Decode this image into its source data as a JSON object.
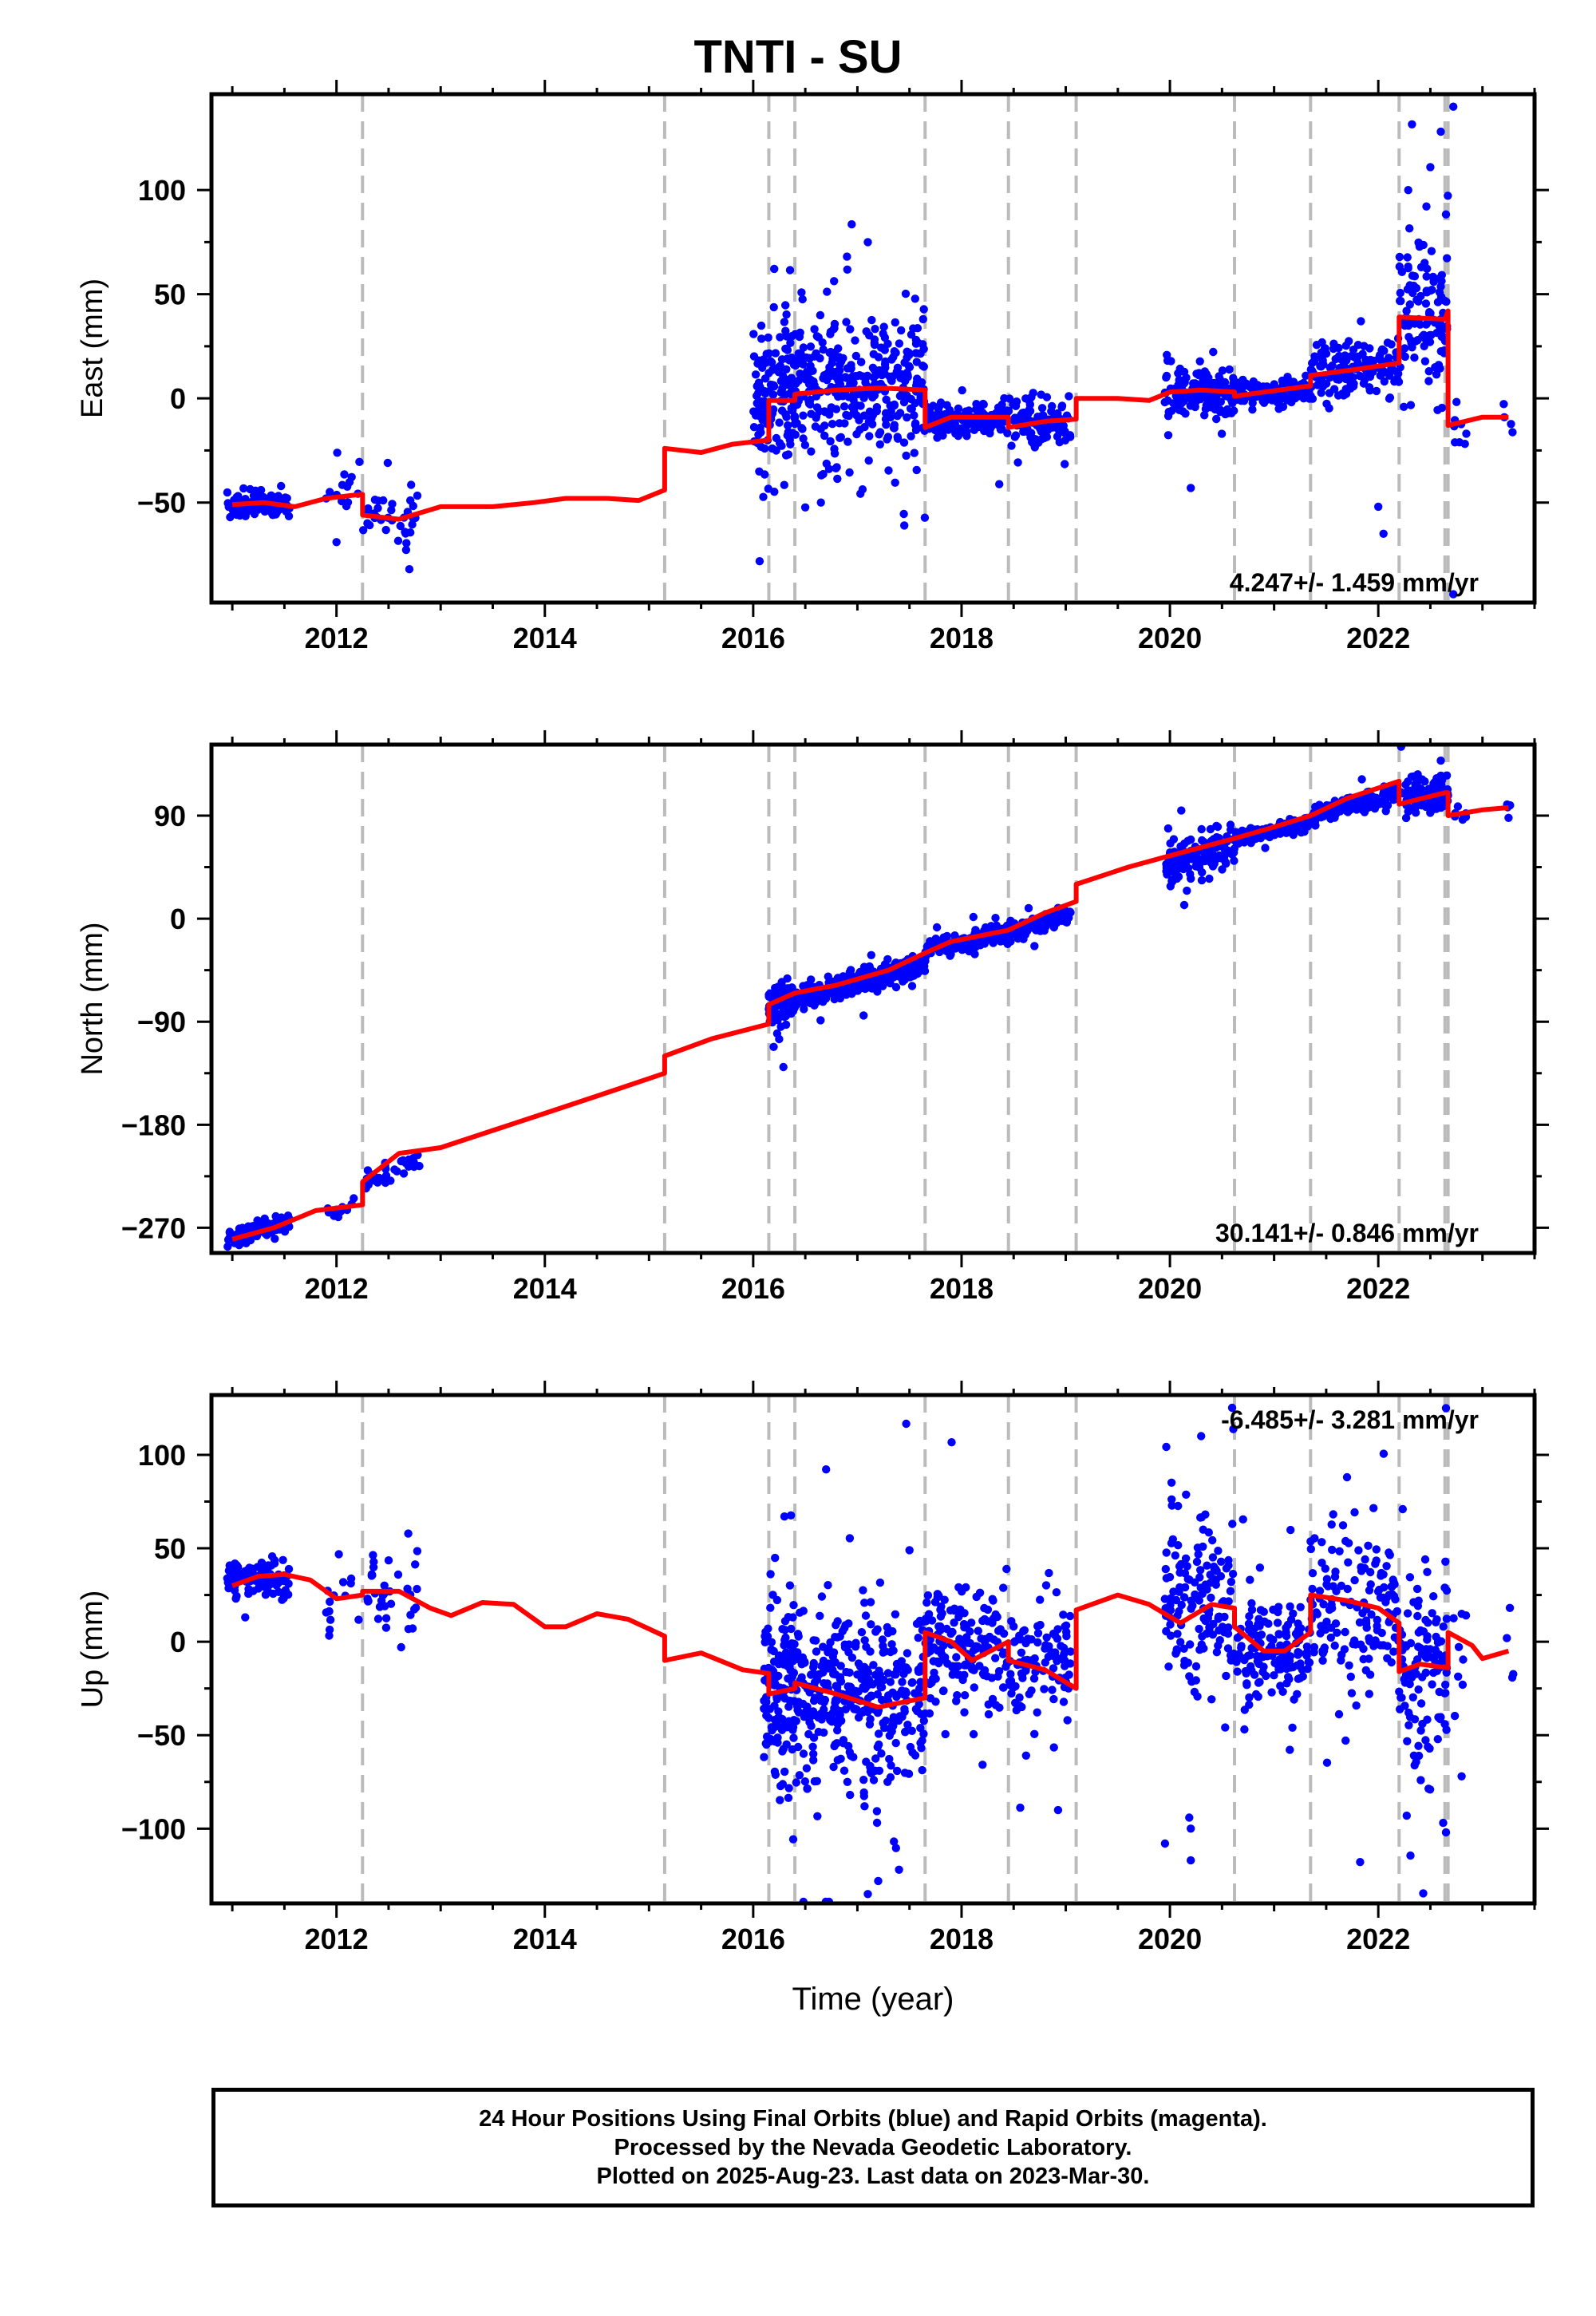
{
  "title": "TNTI - SU",
  "xlabel": "Time (year)",
  "footer": {
    "line1": "24 Hour Positions Using Final Orbits (blue) and Rapid Orbits (magenta).",
    "line2": "Processed by the Nevada Geodetic Laboratory.",
    "line3": "Plotted on 2025-Aug-23. Last data on 2023-Mar-30."
  },
  "colors": {
    "data": "#0000ff",
    "model": "#ff0000",
    "breaks": "#bbbbbb",
    "axis": "#000000"
  },
  "chart_data": [
    {
      "type": "scatter",
      "ylabel": "East (mm)",
      "xlim": [
        2010.8,
        2023.5
      ],
      "ylim": [
        -98,
        146
      ],
      "xticks": [
        2012,
        2014,
        2016,
        2018,
        2020,
        2022
      ],
      "yticks": [
        -50,
        0,
        50,
        100
      ],
      "rate": "4.247+/- 1.459 mm/yr",
      "rate_pos": "bottom",
      "breaks": [
        2012.25,
        2015.15,
        2016.15,
        2016.4,
        2017.65,
        2018.45,
        2019.1,
        2020.62,
        2021.35,
        2022.2,
        2022.64,
        2022.67
      ],
      "model": [
        [
          2011.0,
          -51
        ],
        [
          2011.3,
          -50
        ],
        [
          2011.6,
          -52
        ],
        [
          2011.9,
          -48
        ],
        [
          2012.25,
          -46
        ],
        [
          2012.25,
          -56
        ],
        [
          2012.6,
          -58
        ],
        [
          2013.0,
          -52
        ],
        [
          2013.5,
          -52
        ],
        [
          2013.9,
          -50
        ],
        [
          2014.2,
          -48
        ],
        [
          2014.6,
          -48
        ],
        [
          2014.9,
          -49
        ],
        [
          2015.15,
          -44
        ],
        [
          2015.15,
          -24
        ],
        [
          2015.5,
          -26
        ],
        [
          2015.8,
          -22
        ],
        [
          2016.15,
          -20
        ],
        [
          2016.15,
          -1
        ],
        [
          2016.4,
          -1
        ],
        [
          2016.4,
          2
        ],
        [
          2016.8,
          4
        ],
        [
          2017.2,
          5
        ],
        [
          2017.65,
          4
        ],
        [
          2017.65,
          -14
        ],
        [
          2017.9,
          -9
        ],
        [
          2018.45,
          -9
        ],
        [
          2018.45,
          -14
        ],
        [
          2018.8,
          -11
        ],
        [
          2019.1,
          -10
        ],
        [
          2019.1,
          0
        ],
        [
          2019.5,
          0
        ],
        [
          2019.8,
          -1
        ],
        [
          2020.0,
          3
        ],
        [
          2020.3,
          4
        ],
        [
          2020.62,
          3
        ],
        [
          2020.62,
          1
        ],
        [
          2020.9,
          3
        ],
        [
          2021.35,
          6
        ],
        [
          2021.35,
          11
        ],
        [
          2021.8,
          14
        ],
        [
          2022.2,
          17
        ],
        [
          2022.2,
          39
        ],
        [
          2022.64,
          38
        ],
        [
          2022.67,
          42
        ],
        [
          2022.67,
          -13
        ],
        [
          2023.0,
          -9
        ],
        [
          2023.25,
          -9
        ]
      ],
      "clusters": [
        {
          "x": [
            2010.95,
            2011.55
          ],
          "y": -51,
          "spread": 3,
          "n": 110,
          "tail": 0
        },
        {
          "x": [
            2011.9,
            2012.25
          ],
          "y": -44,
          "spread": 5,
          "n": 14,
          "tail": 0.1
        },
        {
          "x": [
            2012.25,
            2012.8
          ],
          "y": -56,
          "spread": 6,
          "n": 35,
          "tail": 0.1
        },
        {
          "x": [
            2016.0,
            2016.4
          ],
          "y": 0,
          "spread": 18,
          "n": 140,
          "tail": 0.1
        },
        {
          "x": [
            2016.4,
            2017.65
          ],
          "y": 5,
          "spread": 17,
          "n": 360,
          "tail": 0.06
        },
        {
          "x": [
            2017.65,
            2018.45
          ],
          "y": -10,
          "spread": 4,
          "n": 170,
          "tail": 0.03
        },
        {
          "x": [
            2018.45,
            2019.05
          ],
          "y": -12,
          "spread": 5,
          "n": 110,
          "tail": 0.04
        },
        {
          "x": [
            2019.95,
            2020.62
          ],
          "y": 3,
          "spread": 6,
          "n": 150,
          "tail": 0.12
        },
        {
          "x": [
            2020.62,
            2021.35
          ],
          "y": 3,
          "spread": 3,
          "n": 140,
          "tail": 0.02
        },
        {
          "x": [
            2021.35,
            2022.2
          ],
          "y": 15,
          "spread": 7,
          "n": 150,
          "tail": 0.05
        },
        {
          "x": [
            2022.2,
            2022.67
          ],
          "y": 42,
          "spread": 14,
          "n": 120,
          "tail": 0.15
        },
        {
          "x": [
            2022.72,
            2022.85
          ],
          "y": -12,
          "spread": 6,
          "n": 8,
          "tail": 0
        },
        {
          "x": [
            2023.2,
            2023.3
          ],
          "y": -12,
          "spread": 5,
          "n": 4,
          "tail": 0
        }
      ],
      "outliers": [
        [
          2012.0,
          -69
        ],
        [
          2012.7,
          -82
        ],
        [
          2017.1,
          75
        ],
        [
          2016.9,
          68
        ],
        [
          2016.65,
          -50
        ],
        [
          2017.45,
          -61
        ],
        [
          2020.2,
          -43
        ],
        [
          2022.0,
          -52
        ],
        [
          2022.05,
          -65
        ],
        [
          2022.5,
          111
        ],
        [
          2022.6,
          128
        ],
        [
          2022.72,
          140
        ],
        [
          2022.72,
          -94
        ]
      ]
    },
    {
      "type": "scatter",
      "ylabel": "North (mm)",
      "xlim": [
        2010.8,
        2023.5
      ],
      "ylim": [
        -292,
        152
      ],
      "xticks": [
        2012,
        2014,
        2016,
        2018,
        2020,
        2022
      ],
      "yticks": [
        -270,
        -180,
        -90,
        0,
        90
      ],
      "rate": "30.141+/- 0.846 mm/yr",
      "rate_pos": "bottom",
      "breaks": [
        2012.25,
        2015.15,
        2016.15,
        2016.4,
        2017.65,
        2018.45,
        2019.1,
        2020.62,
        2021.35,
        2022.2,
        2022.64,
        2022.67
      ],
      "model": [
        [
          2011.0,
          -280
        ],
        [
          2011.4,
          -270
        ],
        [
          2011.8,
          -255
        ],
        [
          2012.25,
          -250
        ],
        [
          2012.25,
          -230
        ],
        [
          2012.6,
          -205
        ],
        [
          2013.0,
          -200
        ],
        [
          2013.5,
          -185
        ],
        [
          2014.0,
          -170
        ],
        [
          2014.5,
          -155
        ],
        [
          2015.15,
          -135
        ],
        [
          2015.15,
          -120
        ],
        [
          2015.6,
          -105
        ],
        [
          2016.15,
          -92
        ],
        [
          2016.15,
          -75
        ],
        [
          2016.4,
          -65
        ],
        [
          2016.8,
          -58
        ],
        [
          2017.3,
          -45
        ],
        [
          2017.65,
          -30
        ],
        [
          2017.9,
          -20
        ],
        [
          2018.45,
          -10
        ],
        [
          2018.8,
          5
        ],
        [
          2019.1,
          15
        ],
        [
          2019.1,
          30
        ],
        [
          2019.6,
          45
        ],
        [
          2020.0,
          55
        ],
        [
          2020.62,
          70
        ],
        [
          2021.0,
          80
        ],
        [
          2021.35,
          90
        ],
        [
          2021.7,
          105
        ],
        [
          2022.2,
          120
        ],
        [
          2022.2,
          100
        ],
        [
          2022.64,
          110
        ],
        [
          2022.67,
          110
        ],
        [
          2022.67,
          90
        ],
        [
          2023.0,
          95
        ],
        [
          2023.25,
          97
        ]
      ],
      "clusters": [
        {
          "x": [
            2010.95,
            2011.55
          ],
          "y": -272,
          "slope": 30,
          "spread": 4,
          "n": 110,
          "tail": 0
        },
        {
          "x": [
            2011.9,
            2012.25
          ],
          "y": -254,
          "slope": 30,
          "spread": 3,
          "n": 14,
          "tail": 0
        },
        {
          "x": [
            2012.25,
            2012.8
          ],
          "y": -220,
          "slope": 40,
          "spread": 5,
          "n": 35,
          "tail": 0
        },
        {
          "x": [
            2016.15,
            2016.4
          ],
          "y": -75,
          "slope": 40,
          "spread": 8,
          "n": 110,
          "tail": 0.05
        },
        {
          "x": [
            2016.4,
            2017.65
          ],
          "y": -55,
          "slope": 25,
          "spread": 5,
          "n": 360,
          "tail": 0.02
        },
        {
          "x": [
            2017.65,
            2018.45
          ],
          "y": -20,
          "slope": 18,
          "spread": 4,
          "n": 170,
          "tail": 0.02
        },
        {
          "x": [
            2018.45,
            2019.05
          ],
          "y": -5,
          "slope": 30,
          "spread": 4,
          "n": 110,
          "tail": 0.02
        },
        {
          "x": [
            2019.95,
            2020.62
          ],
          "y": 55,
          "slope": 25,
          "spread": 8,
          "n": 150,
          "tail": 0.1
        },
        {
          "x": [
            2020.62,
            2021.35
          ],
          "y": 76,
          "slope": 20,
          "spread": 3,
          "n": 140,
          "tail": 0.02
        },
        {
          "x": [
            2021.35,
            2022.2
          ],
          "y": 100,
          "slope": 25,
          "spread": 4,
          "n": 150,
          "tail": 0.02
        },
        {
          "x": [
            2022.2,
            2022.67
          ],
          "y": 108,
          "slope": 0,
          "spread": 8,
          "n": 120,
          "tail": 0.05
        },
        {
          "x": [
            2022.72,
            2022.85
          ],
          "y": 90,
          "slope": 0,
          "spread": 4,
          "n": 8,
          "tail": 0
        },
        {
          "x": [
            2023.2,
            2023.3
          ],
          "y": 97,
          "slope": 0,
          "spread": 4,
          "n": 4,
          "tail": 0
        }
      ],
      "outliers": [
        [
          2020.2,
          35
        ],
        [
          2022.6,
          138
        ],
        [
          2023.25,
          88
        ]
      ]
    },
    {
      "type": "scatter",
      "ylabel": "Up (mm)",
      "xlim": [
        2010.8,
        2023.5
      ],
      "ylim": [
        -140,
        132
      ],
      "xticks": [
        2012,
        2014,
        2016,
        2018,
        2020,
        2022
      ],
      "yticks": [
        -100,
        -50,
        0,
        50,
        100
      ],
      "rate": "-6.485+/- 3.281 mm/yr",
      "rate_pos": "top",
      "breaks": [
        2012.25,
        2015.15,
        2016.15,
        2016.4,
        2017.65,
        2018.45,
        2019.1,
        2020.62,
        2021.35,
        2022.2,
        2022.64,
        2022.67
      ],
      "model": [
        [
          2011.0,
          30
        ],
        [
          2011.25,
          35
        ],
        [
          2011.5,
          36
        ],
        [
          2011.75,
          33
        ],
        [
          2012.0,
          23
        ],
        [
          2012.25,
          25
        ],
        [
          2012.25,
          27
        ],
        [
          2012.6,
          27
        ],
        [
          2012.9,
          18
        ],
        [
          2013.1,
          14
        ],
        [
          2013.4,
          21
        ],
        [
          2013.7,
          20
        ],
        [
          2014.0,
          8
        ],
        [
          2014.2,
          8
        ],
        [
          2014.5,
          15
        ],
        [
          2014.8,
          12
        ],
        [
          2015.15,
          3
        ],
        [
          2015.15,
          -10
        ],
        [
          2015.5,
          -6
        ],
        [
          2015.9,
          -15
        ],
        [
          2016.15,
          -17
        ],
        [
          2016.15,
          -28
        ],
        [
          2016.4,
          -25
        ],
        [
          2016.4,
          -22
        ],
        [
          2016.8,
          -28
        ],
        [
          2017.2,
          -35
        ],
        [
          2017.65,
          -30
        ],
        [
          2017.65,
          5
        ],
        [
          2017.9,
          0
        ],
        [
          2018.1,
          -10
        ],
        [
          2018.45,
          0
        ],
        [
          2018.45,
          -10
        ],
        [
          2018.8,
          -15
        ],
        [
          2019.1,
          -25
        ],
        [
          2019.1,
          17
        ],
        [
          2019.5,
          25
        ],
        [
          2019.8,
          20
        ],
        [
          2020.1,
          10
        ],
        [
          2020.4,
          20
        ],
        [
          2020.62,
          18
        ],
        [
          2020.62,
          8
        ],
        [
          2020.9,
          -5
        ],
        [
          2021.1,
          -5
        ],
        [
          2021.35,
          5
        ],
        [
          2021.35,
          25
        ],
        [
          2021.7,
          22
        ],
        [
          2022.0,
          18
        ],
        [
          2022.2,
          10
        ],
        [
          2022.2,
          -16
        ],
        [
          2022.4,
          -12
        ],
        [
          2022.67,
          -14
        ],
        [
          2022.67,
          5
        ],
        [
          2022.9,
          -2
        ],
        [
          2023.0,
          -9
        ],
        [
          2023.25,
          -5
        ]
      ],
      "clusters": [
        {
          "x": [
            2010.95,
            2011.55
          ],
          "y": 34,
          "spread": 5,
          "n": 110,
          "tail": 0.02
        },
        {
          "x": [
            2011.9,
            2012.25
          ],
          "y": 25,
          "spread": 12,
          "n": 14,
          "tail": 0.1
        },
        {
          "x": [
            2012.25,
            2012.8
          ],
          "y": 22,
          "spread": 12,
          "n": 35,
          "tail": 0.1
        },
        {
          "x": [
            2016.1,
            2016.4
          ],
          "y": -25,
          "spread": 25,
          "n": 130,
          "tail": 0.1
        },
        {
          "x": [
            2016.4,
            2017.65
          ],
          "y": -28,
          "spread": 25,
          "n": 360,
          "tail": 0.06
        },
        {
          "x": [
            2017.65,
            2018.45
          ],
          "y": -2,
          "spread": 15,
          "n": 170,
          "tail": 0.05
        },
        {
          "x": [
            2018.45,
            2019.05
          ],
          "y": -12,
          "spread": 15,
          "n": 110,
          "tail": 0.05
        },
        {
          "x": [
            2019.95,
            2020.62
          ],
          "y": 20,
          "spread": 22,
          "n": 150,
          "tail": 0.12
        },
        {
          "x": [
            2020.62,
            2021.35
          ],
          "y": -3,
          "spread": 14,
          "n": 140,
          "tail": 0.05
        },
        {
          "x": [
            2021.35,
            2022.2
          ],
          "y": 20,
          "spread": 20,
          "n": 150,
          "tail": 0.06
        },
        {
          "x": [
            2022.2,
            2022.67
          ],
          "y": -15,
          "spread": 25,
          "n": 120,
          "tail": 0.1
        },
        {
          "x": [
            2022.72,
            2022.85
          ],
          "y": 0,
          "spread": 20,
          "n": 8,
          "tail": 0
        },
        {
          "x": [
            2023.2,
            2023.3
          ],
          "y": -5,
          "spread": 10,
          "n": 4,
          "tail": 0
        }
      ],
      "outliers": [
        [
          2016.3,
          67
        ],
        [
          2017.1,
          -135
        ],
        [
          2017.2,
          -128
        ],
        [
          2017.4,
          -122
        ],
        [
          2017.5,
          49
        ],
        [
          2020.2,
          -100
        ],
        [
          2020.2,
          -117
        ],
        [
          2020.3,
          110
        ],
        [
          2021.7,
          88
        ],
        [
          2022.65,
          125
        ],
        [
          2022.65,
          -102
        ],
        [
          2022.8,
          -72
        ]
      ]
    }
  ]
}
